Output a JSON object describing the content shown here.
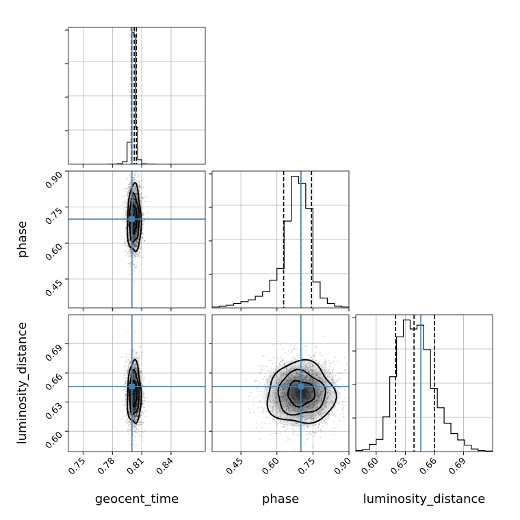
{
  "chart_data": {
    "type": "corner",
    "parameters": [
      "geocent_time",
      "phase",
      "luminosity_distance"
    ],
    "axis_labels": {
      "x": [
        "geocent_time",
        "phase",
        "luminosity_distance"
      ],
      "y": [
        "",
        "phase",
        "luminosity_distance"
      ]
    },
    "ranges": {
      "geocent_time": [
        0.735,
        0.875
      ],
      "phase": [
        0.33,
        0.9
      ],
      "luminosity_distance": [
        0.579,
        0.72
      ]
    },
    "ticks": {
      "geocent_time": [
        "0.75",
        "0.78",
        "0.81",
        "0.84"
      ],
      "phase": [
        "0.45",
        "0.60",
        "0.75",
        "0.90"
      ],
      "luminosity_distance": [
        "0.60",
        "0.63",
        "0.66",
        "0.69"
      ]
    },
    "truths": {
      "geocent_time": 0.8,
      "phase": 0.7,
      "luminosity_distance": 0.646
    },
    "quantiles": {
      "geocent_time": [
        0.7995,
        0.8023,
        0.8045
      ],
      "phase": [
        0.628,
        0.7,
        0.744
      ],
      "luminosity_distance": [
        0.62,
        0.639,
        0.66
      ]
    },
    "histograms": {
      "geocent_time": {
        "edges": [
          0.775,
          0.78,
          0.785,
          0.79,
          0.795,
          0.8,
          0.802,
          0.804,
          0.806,
          0.81,
          0.815,
          0.82,
          0.825
        ],
        "counts": [
          0.02,
          0.06,
          0.6,
          3.2,
          30,
          180,
          176,
          50,
          6,
          0.5,
          0.05,
          0.02
        ]
      },
      "phase": {
        "edges": [
          0.33,
          0.36,
          0.39,
          0.42,
          0.45,
          0.48,
          0.51,
          0.54,
          0.57,
          0.6,
          0.63,
          0.66,
          0.69,
          0.72,
          0.75,
          0.78,
          0.81,
          0.84,
          0.87,
          0.9
        ],
        "counts": [
          1,
          2,
          3,
          5,
          7,
          9,
          13,
          18,
          31,
          44,
          97,
          147,
          139,
          111,
          29,
          11,
          5,
          2,
          1
        ]
      },
      "luminosity_distance": {
        "edges": [
          0.579,
          0.586,
          0.593,
          0.6,
          0.607,
          0.614,
          0.621,
          0.628,
          0.635,
          0.642,
          0.649,
          0.656,
          0.663,
          0.67,
          0.677,
          0.684,
          0.691,
          0.698,
          0.705,
          0.712,
          0.72
        ],
        "counts": [
          0.8,
          1.6,
          5.5,
          9.4,
          27,
          58,
          89,
          102,
          95,
          98,
          79,
          49,
          34,
          22,
          14,
          9,
          5,
          2,
          0.8,
          0.4
        ]
      }
    },
    "scatter_spread": {
      "geocent_time": 0.0035,
      "phase": 0.07,
      "luminosity_distance": 0.016
    },
    "grid": true,
    "contour_levels": 3,
    "colors": {
      "truth": "#4682b4",
      "quantile": "#000000",
      "hist": "#000000",
      "frame": "#000000",
      "grid": "#b0b0b0"
    }
  }
}
